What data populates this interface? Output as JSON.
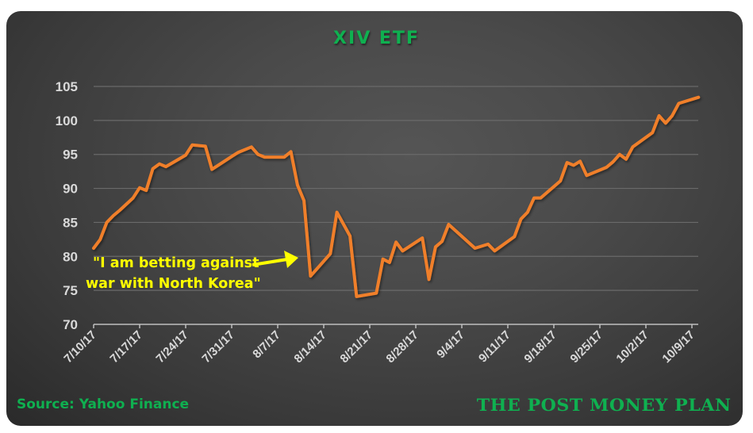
{
  "chart_data": {
    "type": "line",
    "title": "XIV ETF",
    "xlabel": "",
    "ylabel": "",
    "ylim": [
      70,
      105
    ],
    "yticks": [
      70,
      75,
      80,
      85,
      90,
      95,
      100,
      105
    ],
    "grid": true,
    "legend": "none",
    "x_tick_labels": [
      "7/10/17",
      "7/17/17",
      "7/24/17",
      "7/31/17",
      "8/7/17",
      "8/14/17",
      "8/21/17",
      "8/28/17",
      "9/4/17",
      "9/11/17",
      "9/18/17",
      "9/25/17",
      "10/2/17",
      "10/9/17"
    ],
    "series": [
      {
        "name": "XIV",
        "color": "#f07f2a",
        "points": [
          {
            "x": "7/10/17",
            "y": 81.2
          },
          {
            "x": "7/11/17",
            "y": 82.5
          },
          {
            "x": "7/12/17",
            "y": 85.0
          },
          {
            "x": "7/13/17",
            "y": 86.0
          },
          {
            "x": "7/14/17",
            "y": 86.8
          },
          {
            "x": "7/16/17",
            "y": 88.6
          },
          {
            "x": "7/17/17",
            "y": 90.1
          },
          {
            "x": "7/18/17",
            "y": 89.7
          },
          {
            "x": "7/19/17",
            "y": 92.9
          },
          {
            "x": "7/20/17",
            "y": 93.6
          },
          {
            "x": "7/21/17",
            "y": 93.2
          },
          {
            "x": "7/24/17",
            "y": 94.9
          },
          {
            "x": "7/25/17",
            "y": 96.4
          },
          {
            "x": "7/27/17",
            "y": 96.2
          },
          {
            "x": "7/28/17",
            "y": 92.8
          },
          {
            "x": "7/31/17",
            "y": 94.7
          },
          {
            "x": "8/1/17",
            "y": 95.3
          },
          {
            "x": "8/3/17",
            "y": 96.1
          },
          {
            "x": "8/4/17",
            "y": 95.0
          },
          {
            "x": "8/5/17",
            "y": 94.6
          },
          {
            "x": "8/8/17",
            "y": 94.6
          },
          {
            "x": "8/9/17",
            "y": 95.4
          },
          {
            "x": "8/10/17",
            "y": 90.5
          },
          {
            "x": "8/11/17",
            "y": 88.2
          },
          {
            "x": "8/12/17",
            "y": 77.1
          },
          {
            "x": "8/15/17",
            "y": 80.4
          },
          {
            "x": "8/16/17",
            "y": 86.5
          },
          {
            "x": "8/18/17",
            "y": 83.0
          },
          {
            "x": "8/19/17",
            "y": 74.1
          },
          {
            "x": "8/22/17",
            "y": 74.6
          },
          {
            "x": "8/23/17",
            "y": 79.6
          },
          {
            "x": "8/24/17",
            "y": 79.1
          },
          {
            "x": "8/25/17",
            "y": 82.1
          },
          {
            "x": "8/26/17",
            "y": 80.8
          },
          {
            "x": "8/29/17",
            "y": 82.7
          },
          {
            "x": "8/30/17",
            "y": 76.6
          },
          {
            "x": "8/31/17",
            "y": 81.4
          },
          {
            "x": "9/1/17",
            "y": 82.2
          },
          {
            "x": "9/2/17",
            "y": 84.7
          },
          {
            "x": "9/6/17",
            "y": 81.2
          },
          {
            "x": "9/8/17",
            "y": 81.8
          },
          {
            "x": "9/9/17",
            "y": 80.8
          },
          {
            "x": "9/12/17",
            "y": 82.9
          },
          {
            "x": "9/13/17",
            "y": 85.5
          },
          {
            "x": "9/14/17",
            "y": 86.5
          },
          {
            "x": "9/15/17",
            "y": 88.6
          },
          {
            "x": "9/16/17",
            "y": 88.6
          },
          {
            "x": "9/19/17",
            "y": 91.1
          },
          {
            "x": "9/20/17",
            "y": 93.8
          },
          {
            "x": "9/21/17",
            "y": 93.4
          },
          {
            "x": "9/22/17",
            "y": 94.0
          },
          {
            "x": "9/23/17",
            "y": 91.9
          },
          {
            "x": "9/26/17",
            "y": 93.1
          },
          {
            "x": "9/27/17",
            "y": 93.9
          },
          {
            "x": "9/28/17",
            "y": 95.0
          },
          {
            "x": "9/29/17",
            "y": 94.3
          },
          {
            "x": "9/30/17",
            "y": 96.1
          },
          {
            "x": "10/3/17",
            "y": 98.2
          },
          {
            "x": "10/4/17",
            "y": 100.7
          },
          {
            "x": "10/5/17",
            "y": 99.6
          },
          {
            "x": "10/6/17",
            "y": 100.7
          },
          {
            "x": "10/7/17",
            "y": 102.5
          },
          {
            "x": "10/10/17",
            "y": 103.4
          }
        ]
      }
    ],
    "annotations": [
      {
        "text_line1": "\"I am betting against",
        "text_line2": "war with North Korea\"",
        "color": "#ffff00",
        "arrow_to": "8/12/17"
      }
    ]
  },
  "header": {
    "title": "XIV ETF"
  },
  "annotation": {
    "line1": "\"I am betting against",
    "line2": "war with North Korea\""
  },
  "footer": {
    "source": "Source: Yahoo Finance",
    "brand": "THE POST MONEY PLAN"
  },
  "colors": {
    "accent_green": "#0fb050",
    "line_orange": "#f07f2a",
    "annotation_yellow": "#ffff00",
    "axis_text": "#d9d9d9"
  }
}
